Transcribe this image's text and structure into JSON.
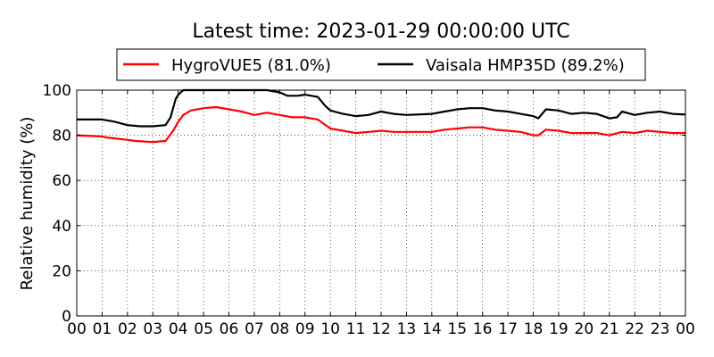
{
  "chart_data": {
    "type": "line",
    "title": "Latest time: 2023-01-29 00:00:00 UTC",
    "ylabel": "Relative humidity (%)",
    "xlabel": "",
    "ylim": [
      0,
      100
    ],
    "xlim": [
      0,
      24
    ],
    "grid": true,
    "legend_placement": "top-center",
    "yticks": [
      0,
      20,
      40,
      60,
      80,
      100
    ],
    "xticks": [
      0,
      1,
      2,
      3,
      4,
      5,
      6,
      7,
      8,
      9,
      10,
      11,
      12,
      13,
      14,
      15,
      16,
      17,
      18,
      19,
      20,
      21,
      22,
      23,
      24
    ],
    "xtick_labels": [
      "00",
      "01",
      "02",
      "03",
      "04",
      "05",
      "06",
      "07",
      "08",
      "09",
      "10",
      "11",
      "12",
      "13",
      "14",
      "15",
      "16",
      "17",
      "18",
      "19",
      "20",
      "21",
      "22",
      "23",
      "00"
    ],
    "series": [
      {
        "name": "HygroVUE5 (81.0%)",
        "color": "#ff0000",
        "points": [
          [
            0,
            80
          ],
          [
            1,
            79.5
          ],
          [
            1.2,
            79
          ],
          [
            2,
            78
          ],
          [
            2.3,
            77.5
          ],
          [
            3,
            77
          ],
          [
            3.5,
            77.5
          ],
          [
            3.8,
            82
          ],
          [
            4,
            86
          ],
          [
            4.2,
            89
          ],
          [
            4.5,
            91
          ],
          [
            5,
            92
          ],
          [
            5.5,
            92.5
          ],
          [
            6,
            91.5
          ],
          [
            6.5,
            90.5
          ],
          [
            7,
            89
          ],
          [
            7.5,
            90
          ],
          [
            8,
            89
          ],
          [
            8.5,
            88
          ],
          [
            9,
            88
          ],
          [
            9.5,
            87
          ],
          [
            10,
            83
          ],
          [
            10.5,
            82
          ],
          [
            11,
            81
          ],
          [
            11.5,
            81.5
          ],
          [
            12,
            82
          ],
          [
            12.5,
            81.5
          ],
          [
            13,
            81.5
          ],
          [
            14,
            81.5
          ],
          [
            14.5,
            82.5
          ],
          [
            15,
            83
          ],
          [
            15.5,
            83.5
          ],
          [
            16,
            83.5
          ],
          [
            16.5,
            82.5
          ],
          [
            17,
            82
          ],
          [
            17.5,
            81.5
          ],
          [
            18,
            80
          ],
          [
            18.2,
            80
          ],
          [
            18.5,
            82.5
          ],
          [
            19,
            82
          ],
          [
            19.5,
            81
          ],
          [
            20,
            81
          ],
          [
            20.5,
            81
          ],
          [
            21,
            80
          ],
          [
            21.5,
            81.5
          ],
          [
            22,
            81
          ],
          [
            22.5,
            82
          ],
          [
            23,
            81.5
          ],
          [
            23.5,
            81
          ],
          [
            24,
            81
          ]
        ]
      },
      {
        "name": "Vaisala HMP35D (89.2%)",
        "color": "#000000",
        "points": [
          [
            0,
            87
          ],
          [
            0.5,
            87
          ],
          [
            1,
            87
          ],
          [
            1.5,
            86
          ],
          [
            2,
            84.5
          ],
          [
            2.5,
            84
          ],
          [
            3,
            84
          ],
          [
            3.5,
            84.5
          ],
          [
            3.7,
            88
          ],
          [
            3.9,
            96
          ],
          [
            4,
            98
          ],
          [
            4.2,
            100
          ],
          [
            4.5,
            100
          ],
          [
            6,
            100
          ],
          [
            7,
            100
          ],
          [
            7.5,
            100
          ],
          [
            8,
            99
          ],
          [
            8.3,
            97.5
          ],
          [
            8.7,
            97.5
          ],
          [
            9,
            98
          ],
          [
            9.5,
            97
          ],
          [
            9.8,
            93
          ],
          [
            10,
            91
          ],
          [
            10.5,
            89.5
          ],
          [
            11,
            88.5
          ],
          [
            11.5,
            89
          ],
          [
            12,
            90.5
          ],
          [
            12.5,
            89.5
          ],
          [
            13,
            89
          ],
          [
            14,
            89.5
          ],
          [
            14.5,
            90.5
          ],
          [
            15,
            91.5
          ],
          [
            15.5,
            92
          ],
          [
            16,
            92
          ],
          [
            16.5,
            91
          ],
          [
            17,
            90.5
          ],
          [
            17.5,
            89.5
          ],
          [
            18,
            88.5
          ],
          [
            18.2,
            87.5
          ],
          [
            18.5,
            91.5
          ],
          [
            19,
            91
          ],
          [
            19.5,
            89.5
          ],
          [
            20,
            90
          ],
          [
            20.5,
            89.5
          ],
          [
            21,
            87.5
          ],
          [
            21.3,
            88
          ],
          [
            21.5,
            90.5
          ],
          [
            22,
            89
          ],
          [
            22.5,
            90
          ],
          [
            23,
            90.5
          ],
          [
            23.5,
            89.5
          ],
          [
            24,
            89.2
          ]
        ]
      }
    ]
  }
}
